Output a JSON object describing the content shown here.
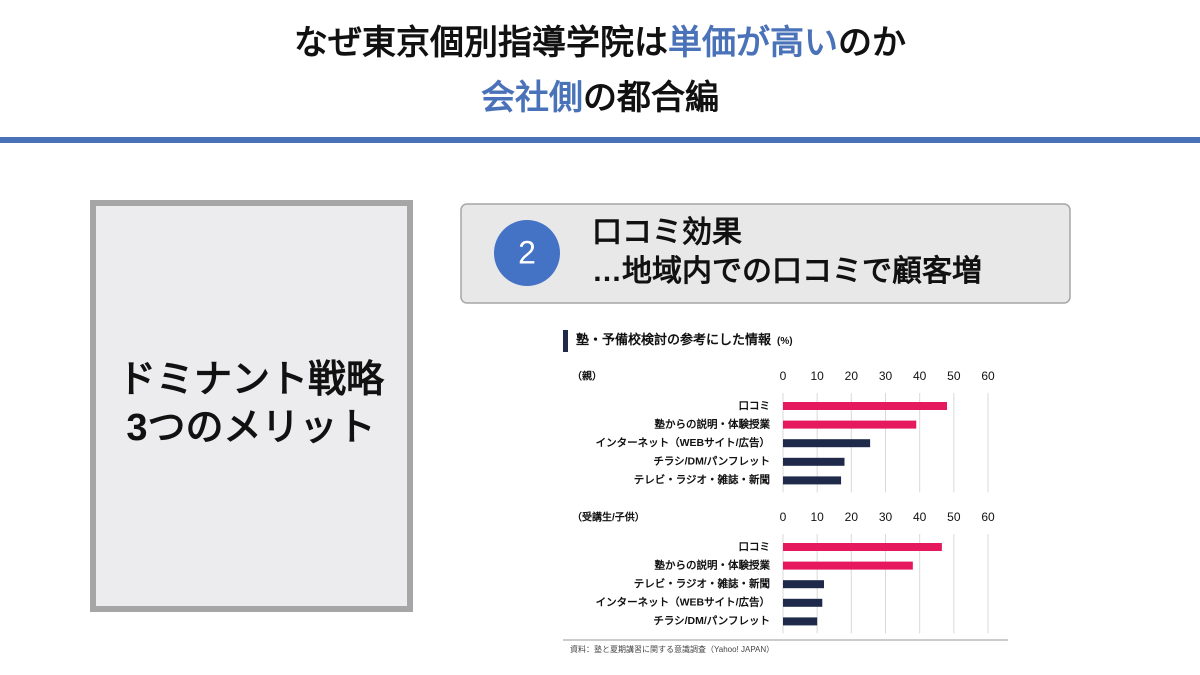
{
  "header": {
    "lines": [
      [
        {
          "text": "なぜ東京個別指導学院は",
          "color": "#111111"
        },
        {
          "text": "単価が高い",
          "color": "#4a72b8"
        },
        {
          "text": "のか",
          "color": "#111111"
        }
      ],
      [
        {
          "text": "会社側",
          "color": "#4a72b8"
        },
        {
          "text": "の都合編",
          "color": "#111111"
        }
      ]
    ]
  },
  "left_box": {
    "lines": [
      "ドミナント戦略",
      "3つのメリット"
    ]
  },
  "callout": {
    "number": "2",
    "lines": [
      "口コミ効果",
      "…地域内での口コミで顧客増"
    ]
  },
  "chart_heading": {
    "title": "塾・予備校検討の参考にした情報",
    "unit": "(%)"
  },
  "source": "資料：塾と夏期講習に関する意識調査（Yahoo! JAPAN）",
  "chart_data": [
    {
      "type": "bar",
      "orientation": "horizontal",
      "title": "（親）",
      "categories": [
        "口コミ",
        "塾からの説明・体験授業",
        "インターネット（WEBサイト/広告）",
        "チラシ/DM/パンフレット",
        "テレビ・ラジオ・雑誌・新聞"
      ],
      "values": [
        48,
        39,
        25.5,
        18,
        17
      ],
      "colors": [
        "#e6195e",
        "#e6195e",
        "#1f2a4a",
        "#1f2a4a",
        "#1f2a4a"
      ],
      "xlim": [
        0,
        60
      ],
      "xticks": [
        0,
        10,
        20,
        30,
        40,
        50,
        60
      ],
      "grid": true
    },
    {
      "type": "bar",
      "orientation": "horizontal",
      "title": "（受講生/子供）",
      "categories": [
        "口コミ",
        "塾からの説明・体験授業",
        "テレビ・ラジオ・雑誌・新聞",
        "インターネット（WEBサイト/広告）",
        "チラシ/DM/パンフレット"
      ],
      "values": [
        46.5,
        38,
        12,
        11.5,
        10
      ],
      "colors": [
        "#e6195e",
        "#e6195e",
        "#1f2a4a",
        "#1f2a4a",
        "#1f2a4a"
      ],
      "xlim": [
        0,
        60
      ],
      "xticks": [
        0,
        10,
        20,
        30,
        40,
        50,
        60
      ],
      "grid": true
    }
  ]
}
